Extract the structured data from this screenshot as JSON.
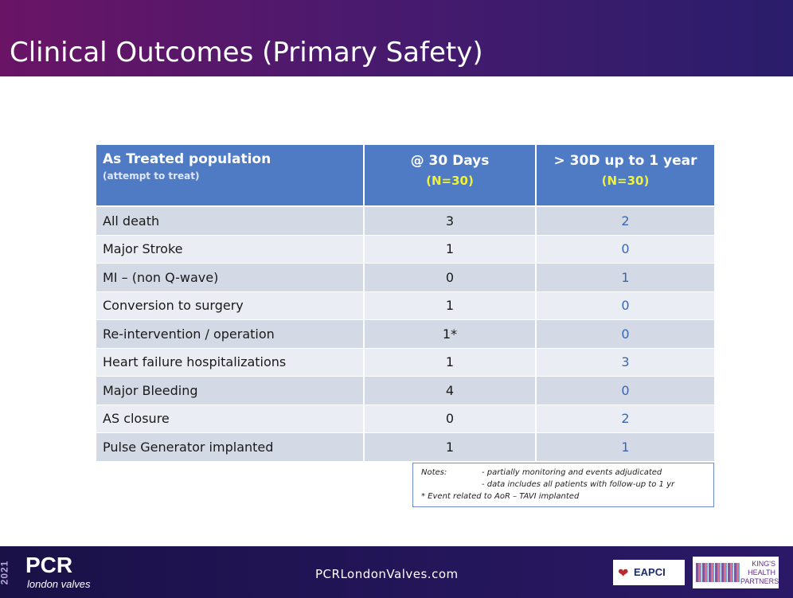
{
  "slide": {
    "title": "Clinical Outcomes (Primary Safety)"
  },
  "table": {
    "header": {
      "population": "As Treated population",
      "population_note": "(attempt to treat)",
      "col_30d": "@ 30 Days",
      "col_30d_n": "(N=30)",
      "col_1yr": "> 30D up to 1 year",
      "col_1yr_n": "(N=30)"
    },
    "rows": [
      {
        "label": "All death",
        "d30": "3",
        "yr": "2"
      },
      {
        "label": "Major Stroke",
        "d30": "1",
        "yr": "0"
      },
      {
        "label": "MI – (non Q-wave)",
        "d30": "0",
        "yr": "1"
      },
      {
        "label": "Conversion to surgery",
        "d30": "1",
        "yr": "0"
      },
      {
        "label": "Re-intervention / operation",
        "d30": "1*",
        "yr": "0"
      },
      {
        "label": "Heart failure hospitalizations",
        "d30": "1",
        "yr": "3"
      },
      {
        "label": "Major Bleeding",
        "d30": "4",
        "yr": "0"
      },
      {
        "label": "AS closure",
        "d30": "0",
        "yr": "2"
      },
      {
        "label": "Pulse Generator implanted",
        "d30": "1",
        "yr": "1"
      }
    ]
  },
  "notes": {
    "label": "Notes:",
    "line1": "- partially monitoring and events adjudicated",
    "line2": "- data includes all patients with follow-up to 1 yr",
    "footnote": "* Event related to AoR – TAVI implanted"
  },
  "footer": {
    "year": "2021",
    "logo": "PCR",
    "logo_sub": "london valves",
    "url": "PCRLondonValves.com",
    "eapci": "EAPCI",
    "khp_line1": "KING'S",
    "khp_line2": "HEALTH",
    "khp_line3": "PARTNERS"
  },
  "colors": {
    "title_gradient_start": "#6a1466",
    "title_gradient_end": "#2a1d6b",
    "table_header": "#4f7bc4",
    "header_n_highlight": "#f1f136",
    "row_dark": "#d4d9e6",
    "row_light": "#eaedf4",
    "year_values": "#3a67b0",
    "footer_bg": "#1a1147"
  }
}
